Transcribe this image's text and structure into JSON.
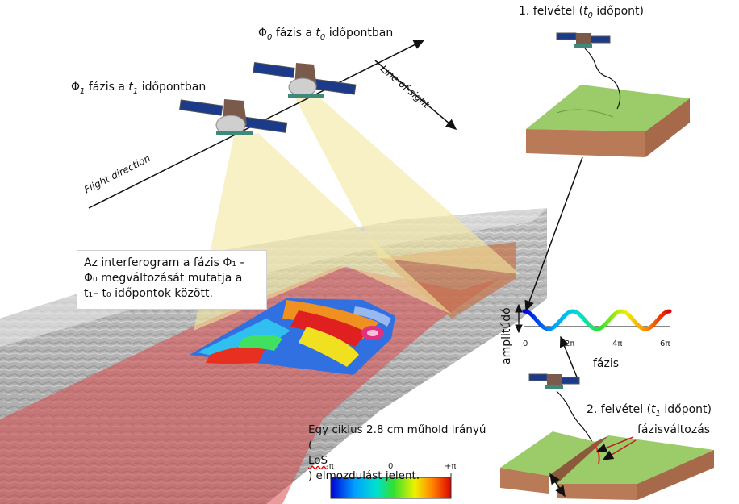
{
  "labels": {
    "phi1": {
      "sym": "Φ",
      "sub": "1",
      "text": " fázis a ",
      "t": "t",
      "tsub": "1",
      "tail": " időpontban"
    },
    "phi0": {
      "sym": "Φ",
      "sub": "0",
      "text": " fázis a ",
      "t": "t",
      "tsub": "0",
      "tail": " időpontban"
    },
    "flight_direction": "Flight direction",
    "line_of_sight": "Line-of-sight",
    "acq1": {
      "pre": "1. felvétel (",
      "t": "t",
      "tsub": "0",
      "post": " időpont)"
    },
    "acq2": {
      "pre": "2. felvétel (",
      "t": "t",
      "tsub": "1",
      "post": " időpont)"
    },
    "phase_change": "fázisváltozás",
    "amplitude": "amplitúdó",
    "phase": "fázis"
  },
  "note": {
    "line1": "Az interferogram a fázis Φ₁ -",
    "line2": "Φ₀ megváltozását mutatja a",
    "line3": "t₁– t₀ időpontok között."
  },
  "cycle": {
    "line1": "Egy ciklus 2.8 cm műhold irányú",
    "line2_pre": "(",
    "line2_los": "LoS",
    "line2_post": ") elmozdulást jelent."
  },
  "wave_ticks": [
    "0",
    "2π",
    "4π",
    "6π"
  ],
  "colorbar": {
    "min": "-π",
    "mid": "0",
    "max": "+π"
  },
  "colors": {
    "ground_green": "#9ccc6a",
    "ground_brown": "#b97a57",
    "footprint_yellow": "#f4e7a0",
    "swath_red": "#d9484a"
  }
}
